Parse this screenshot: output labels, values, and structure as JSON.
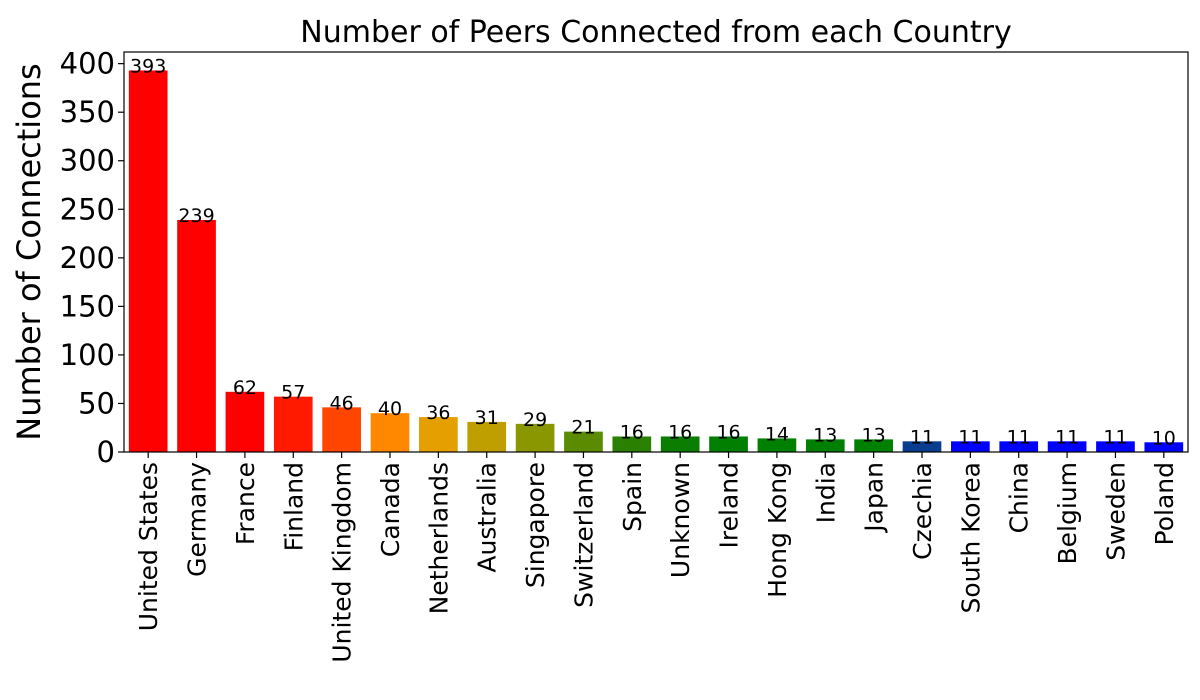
{
  "chart_data": {
    "type": "bar",
    "title": "Number of Peers Connected from each Country",
    "xlabel": "",
    "ylabel": "Number of Connections",
    "ylim": [
      0,
      412
    ],
    "yticks": [
      0,
      50,
      100,
      150,
      200,
      250,
      300,
      350,
      400
    ],
    "grid": false,
    "legend": "none",
    "categories": [
      "United States",
      "Germany",
      "France",
      "Finland",
      "United Kingdom",
      "Canada",
      "Netherlands",
      "Australia",
      "Singapore",
      "Switzerland",
      "Spain",
      "Unknown",
      "Ireland",
      "Hong Kong",
      "India",
      "Japan",
      "Czechia",
      "South Korea",
      "China",
      "Belgium",
      "Sweden",
      "Poland"
    ],
    "values": [
      393,
      239,
      62,
      57,
      46,
      40,
      36,
      31,
      29,
      21,
      16,
      16,
      16,
      14,
      13,
      13,
      11,
      11,
      11,
      11,
      11,
      10
    ],
    "colors": [
      "#ff0000",
      "#ff0000",
      "#ff0000",
      "#ff1a00",
      "#ff4500",
      "#ff8800",
      "#e5a000",
      "#bf9e00",
      "#8a9700",
      "#5a8b00",
      "#2a8000",
      "#0b7d00",
      "#007f00",
      "#008000",
      "#008000",
      "#008000",
      "#0a3d8f",
      "#0000ff",
      "#0000ff",
      "#0000ff",
      "#0000ff",
      "#0000ff"
    ]
  }
}
